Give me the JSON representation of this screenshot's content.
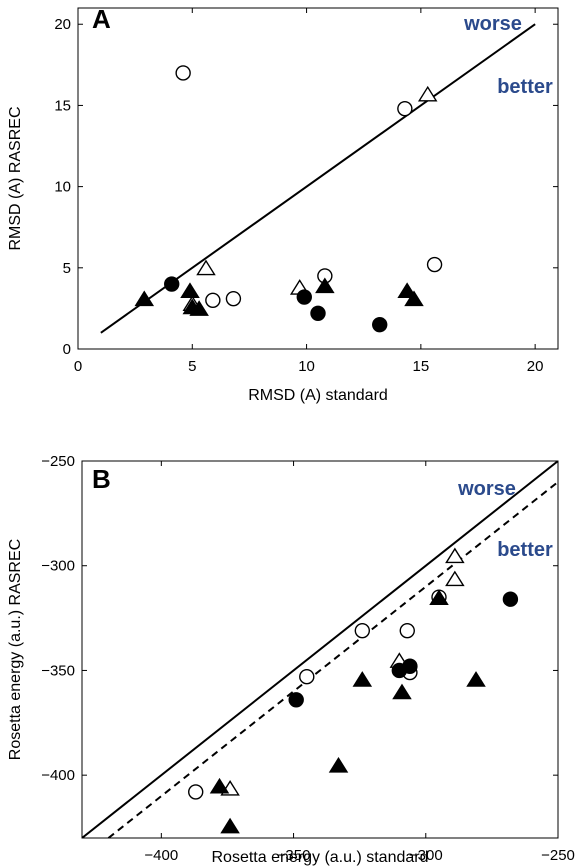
{
  "chart_data": [
    {
      "type": "scatter",
      "panel_label": "A",
      "xlabel": "RMSD (A) standard",
      "ylabel": "RMSD (A) RASREC",
      "xlim": [
        0,
        21
      ],
      "ylim": [
        0,
        21
      ],
      "xticks": [
        0,
        5,
        10,
        15,
        20
      ],
      "yticks": [
        0,
        5,
        10,
        15,
        20
      ],
      "annotations": [
        "worse",
        "better"
      ],
      "annotation_color": "#2b4a8c",
      "reference_lines": [
        {
          "style": "solid",
          "from": [
            1,
            1
          ],
          "to": [
            20,
            20
          ]
        }
      ],
      "series": [
        {
          "marker": "open-circle",
          "points": [
            [
              4.6,
              17.0
            ],
            [
              14.3,
              14.8
            ],
            [
              10.8,
              4.5
            ],
            [
              15.6,
              5.2
            ],
            [
              5.9,
              3.0
            ],
            [
              6.8,
              3.1
            ]
          ]
        },
        {
          "marker": "open-triangle",
          "points": [
            [
              15.3,
              15.6
            ],
            [
              5.6,
              4.9
            ],
            [
              9.7,
              3.7
            ],
            [
              5.0,
              2.7
            ]
          ]
        },
        {
          "marker": "filled-circle",
          "points": [
            [
              4.1,
              4.0
            ],
            [
              9.9,
              3.2
            ],
            [
              10.5,
              2.2
            ],
            [
              13.2,
              1.5
            ]
          ]
        },
        {
          "marker": "filled-triangle",
          "points": [
            [
              2.9,
              3.0
            ],
            [
              4.9,
              3.5
            ],
            [
              5.0,
              2.5
            ],
            [
              5.3,
              2.4
            ],
            [
              10.8,
              3.8
            ],
            [
              14.4,
              3.5
            ],
            [
              14.7,
              3.0
            ]
          ]
        }
      ]
    },
    {
      "type": "scatter",
      "panel_label": "B",
      "xlabel": "Rosetta energy (a.u.) standard",
      "ylabel": "Rosetta energy (a.u.) RASREC",
      "xlim": [
        -430,
        -250
      ],
      "ylim": [
        -430,
        -250
      ],
      "xticks": [
        -400,
        -350,
        -300,
        -250
      ],
      "yticks": [
        -400,
        -350,
        -300,
        -250
      ],
      "annotations": [
        "worse",
        "better"
      ],
      "annotation_color": "#2b4a8c",
      "reference_lines": [
        {
          "style": "solid",
          "from": [
            -430,
            -430
          ],
          "to": [
            -250,
            -250
          ]
        },
        {
          "style": "dashed",
          "from": [
            -420,
            -430
          ],
          "to": [
            -250,
            -260
          ]
        }
      ],
      "series": [
        {
          "marker": "open-circle",
          "points": [
            [
              -387,
              -408
            ],
            [
              -345,
              -353
            ],
            [
              -324,
              -331
            ],
            [
              -307,
              -331
            ],
            [
              -306,
              -351
            ],
            [
              -295,
              -315
            ]
          ]
        },
        {
          "marker": "open-triangle",
          "points": [
            [
              -374,
              -407
            ],
            [
              -310,
              -346
            ],
            [
              -289,
              -296
            ],
            [
              -289,
              -307
            ]
          ]
        },
        {
          "marker": "filled-circle",
          "points": [
            [
              -349,
              -364
            ],
            [
              -310,
              -350
            ],
            [
              -306,
              -348
            ],
            [
              -268,
              -316
            ]
          ]
        },
        {
          "marker": "filled-triangle",
          "points": [
            [
              -378,
              -406
            ],
            [
              -374,
              -425
            ],
            [
              -333,
              -396
            ],
            [
              -324,
              -355
            ],
            [
              -309,
              -361
            ],
            [
              -295,
              -316
            ],
            [
              -281,
              -355
            ]
          ]
        }
      ]
    }
  ]
}
